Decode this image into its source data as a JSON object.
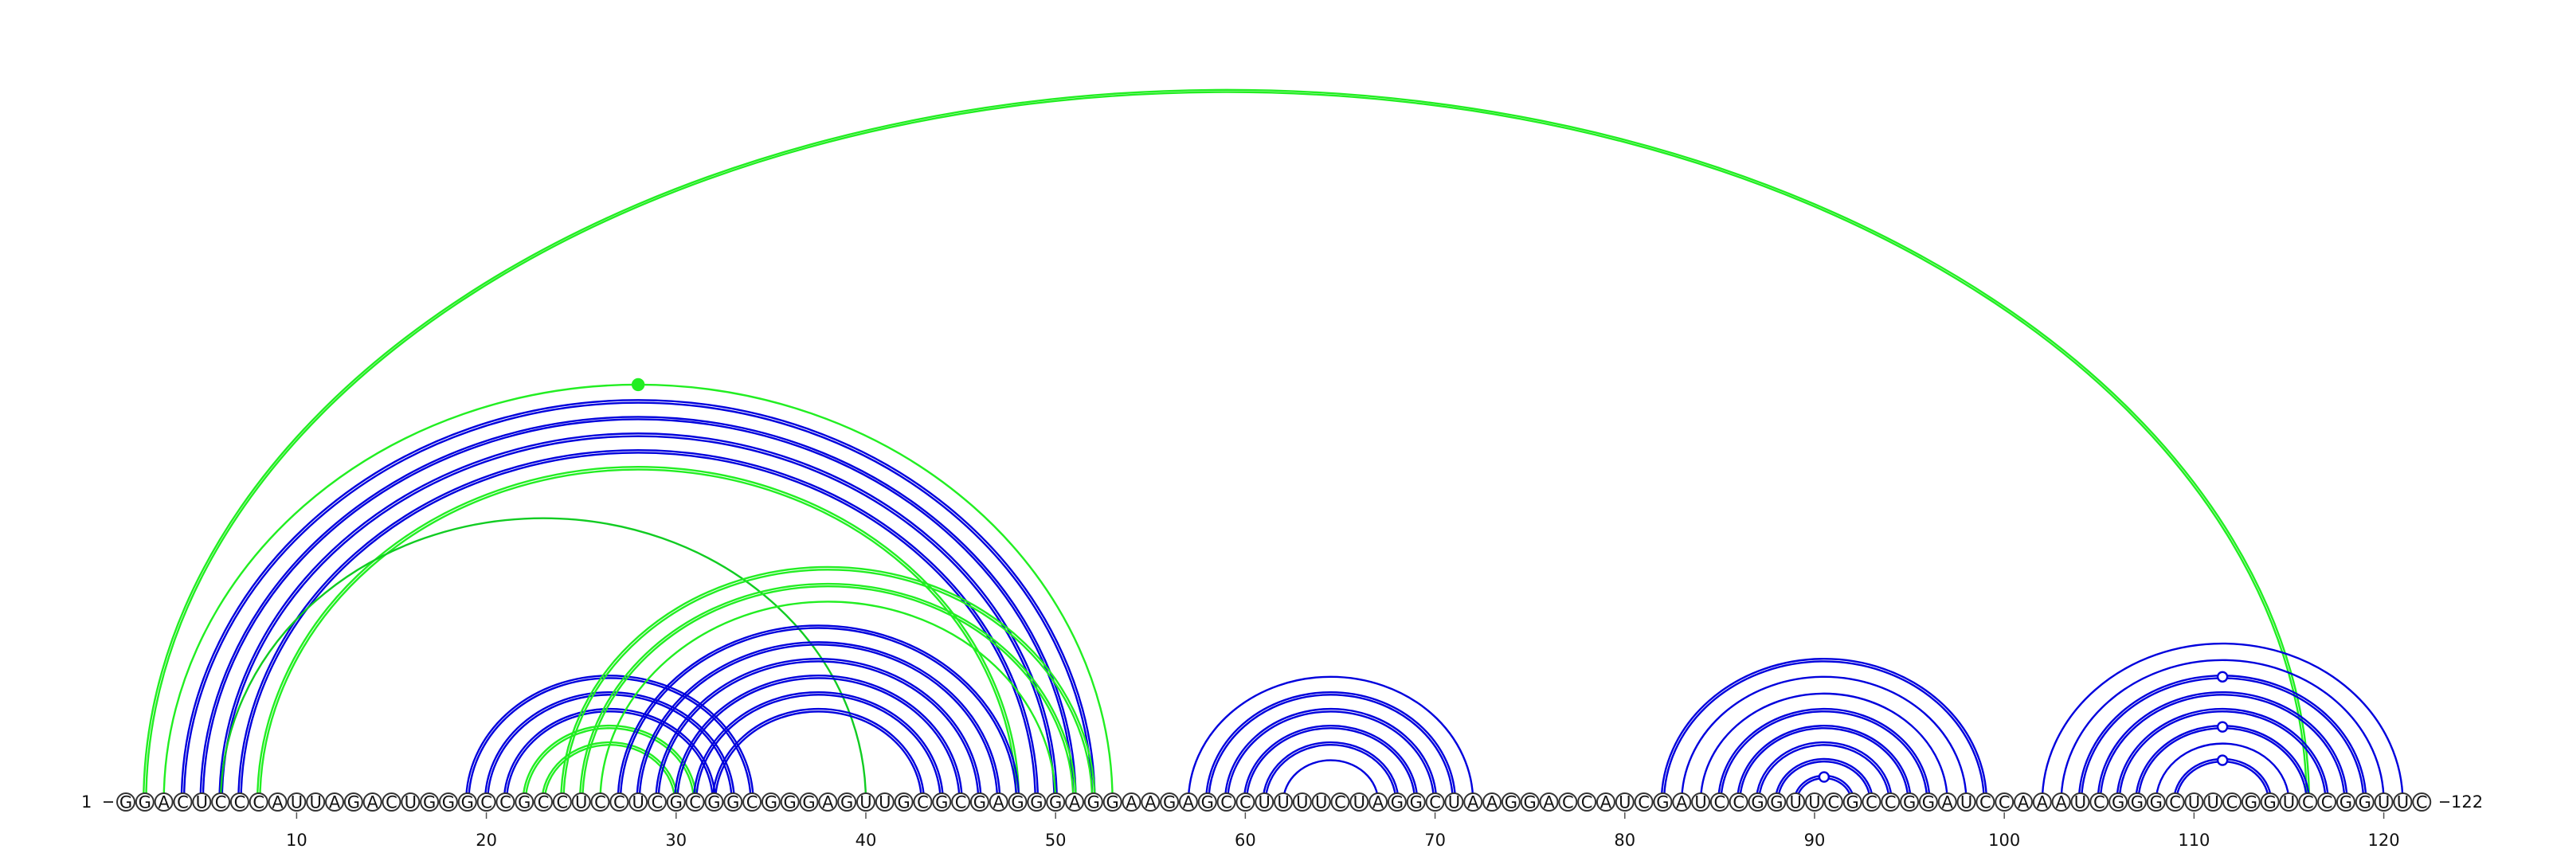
{
  "sequence": "GGACUCCCAUUAGACUGGGCCGCCUCCUCGCGGCGGGAGUUGCGCGAGGGAGGAAGAGCCUUUUCUAGGCUAAGGACCAUCGAUCCGGUUCGCCGGAUCCAAAUCGGGCUUCGGUCCGGUUC",
  "start_label": "1",
  "end_label": "122",
  "ticks": [
    10,
    20,
    30,
    40,
    50,
    60,
    70,
    80,
    90,
    100,
    110,
    120
  ],
  "colors": {
    "blue": "#0000dd",
    "green": "#22ee22",
    "dark_green": "#11cc22"
  },
  "arcs": [
    {
      "i": 2,
      "j": 116,
      "color": "green",
      "double": true
    },
    {
      "i": 3,
      "j": 53,
      "color": "green",
      "double": false
    },
    {
      "i": 4,
      "j": 52,
      "color": "blue",
      "double": true
    },
    {
      "i": 5,
      "j": 51,
      "color": "blue",
      "double": true
    },
    {
      "i": 6,
      "j": 50,
      "color": "blue",
      "double": true
    },
    {
      "i": 7,
      "j": 49,
      "color": "blue",
      "double": true
    },
    {
      "i": 8,
      "j": 48,
      "color": "green",
      "double": true
    },
    {
      "i": 6,
      "j": 40,
      "color": "dark_green",
      "double": false
    },
    {
      "i": 19,
      "j": 34,
      "color": "blue",
      "double": true
    },
    {
      "i": 20,
      "j": 33,
      "color": "blue",
      "double": true
    },
    {
      "i": 21,
      "j": 32,
      "color": "blue",
      "double": true
    },
    {
      "i": 22,
      "j": 31,
      "color": "green",
      "double": true
    },
    {
      "i": 23,
      "j": 30,
      "color": "green",
      "double": true
    },
    {
      "i": 24,
      "j": 52,
      "color": "green",
      "double": true
    },
    {
      "i": 25,
      "j": 51,
      "color": "green",
      "double": true
    },
    {
      "i": 26,
      "j": 50,
      "color": "green",
      "double": false
    },
    {
      "i": 27,
      "j": 48,
      "color": "blue",
      "double": true
    },
    {
      "i": 28,
      "j": 47,
      "color": "blue",
      "double": true
    },
    {
      "i": 29,
      "j": 46,
      "color": "blue",
      "double": true
    },
    {
      "i": 30,
      "j": 45,
      "color": "blue",
      "double": true
    },
    {
      "i": 31,
      "j": 44,
      "color": "blue",
      "double": true
    },
    {
      "i": 32,
      "j": 43,
      "color": "blue",
      "double": true
    },
    {
      "i": 57,
      "j": 72,
      "color": "blue",
      "double": false
    },
    {
      "i": 58,
      "j": 71,
      "color": "blue",
      "double": true
    },
    {
      "i": 59,
      "j": 70,
      "color": "blue",
      "double": true
    },
    {
      "i": 60,
      "j": 69,
      "color": "blue",
      "double": true
    },
    {
      "i": 61,
      "j": 68,
      "color": "blue",
      "double": true
    },
    {
      "i": 62,
      "j": 67,
      "color": "blue",
      "double": false
    },
    {
      "i": 82,
      "j": 99,
      "color": "blue",
      "double": true
    },
    {
      "i": 83,
      "j": 98,
      "color": "blue",
      "double": false
    },
    {
      "i": 84,
      "j": 97,
      "color": "blue",
      "double": false
    },
    {
      "i": 85,
      "j": 96,
      "color": "blue",
      "double": true
    },
    {
      "i": 86,
      "j": 95,
      "color": "blue",
      "double": true
    },
    {
      "i": 87,
      "j": 94,
      "color": "blue",
      "double": true
    },
    {
      "i": 88,
      "j": 93,
      "color": "blue",
      "double": true
    },
    {
      "i": 89,
      "j": 92,
      "color": "blue",
      "double": true
    },
    {
      "i": 102,
      "j": 121,
      "color": "blue",
      "double": false
    },
    {
      "i": 103,
      "j": 120,
      "color": "blue",
      "double": false
    },
    {
      "i": 104,
      "j": 119,
      "color": "blue",
      "double": true
    },
    {
      "i": 105,
      "j": 118,
      "color": "blue",
      "double": true
    },
    {
      "i": 106,
      "j": 117,
      "color": "blue",
      "double": true
    },
    {
      "i": 107,
      "j": 116,
      "color": "blue",
      "double": true
    },
    {
      "i": 108,
      "j": 115,
      "color": "blue",
      "double": false
    },
    {
      "i": 109,
      "j": 114,
      "color": "blue",
      "double": true
    }
  ],
  "apex_markers": [
    {
      "i": 3,
      "j": 53,
      "color": "green",
      "filled": true
    },
    {
      "i": 89,
      "j": 92,
      "color": "blue",
      "filled": false
    },
    {
      "i": 104,
      "j": 119,
      "color": "blue",
      "filled": false
    },
    {
      "i": 107,
      "j": 116,
      "color": "blue",
      "filled": false
    },
    {
      "i": 109,
      "j": 114,
      "color": "blue",
      "filled": false
    }
  ]
}
